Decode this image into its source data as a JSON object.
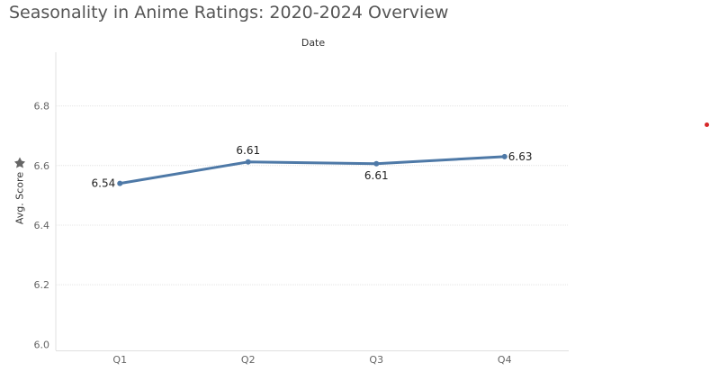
{
  "chart_data": {
    "type": "line",
    "title": "Seasonality in Anime Ratings: 2020-2024 Overview",
    "x_header": "Date",
    "ylabel": "Avg. Score",
    "categories": [
      "Q1",
      "Q2",
      "Q3",
      "Q4"
    ],
    "values": [
      6.54,
      6.612,
      6.606,
      6.63
    ],
    "data_labels": [
      "6.54",
      "6.61",
      "6.61",
      "6.63"
    ],
    "y_ticks": [
      "6.0",
      "6.2",
      "6.4",
      "6.6",
      "6.8"
    ],
    "ylim": [
      5.98,
      6.98
    ],
    "grid": true,
    "legend": "none"
  },
  "colors": {
    "line": "#4e79a7",
    "title": "#555555",
    "grid": "#e4e4e4",
    "red_marker": "#d62728"
  },
  "icons": {
    "axis_pin": "pin-icon"
  }
}
